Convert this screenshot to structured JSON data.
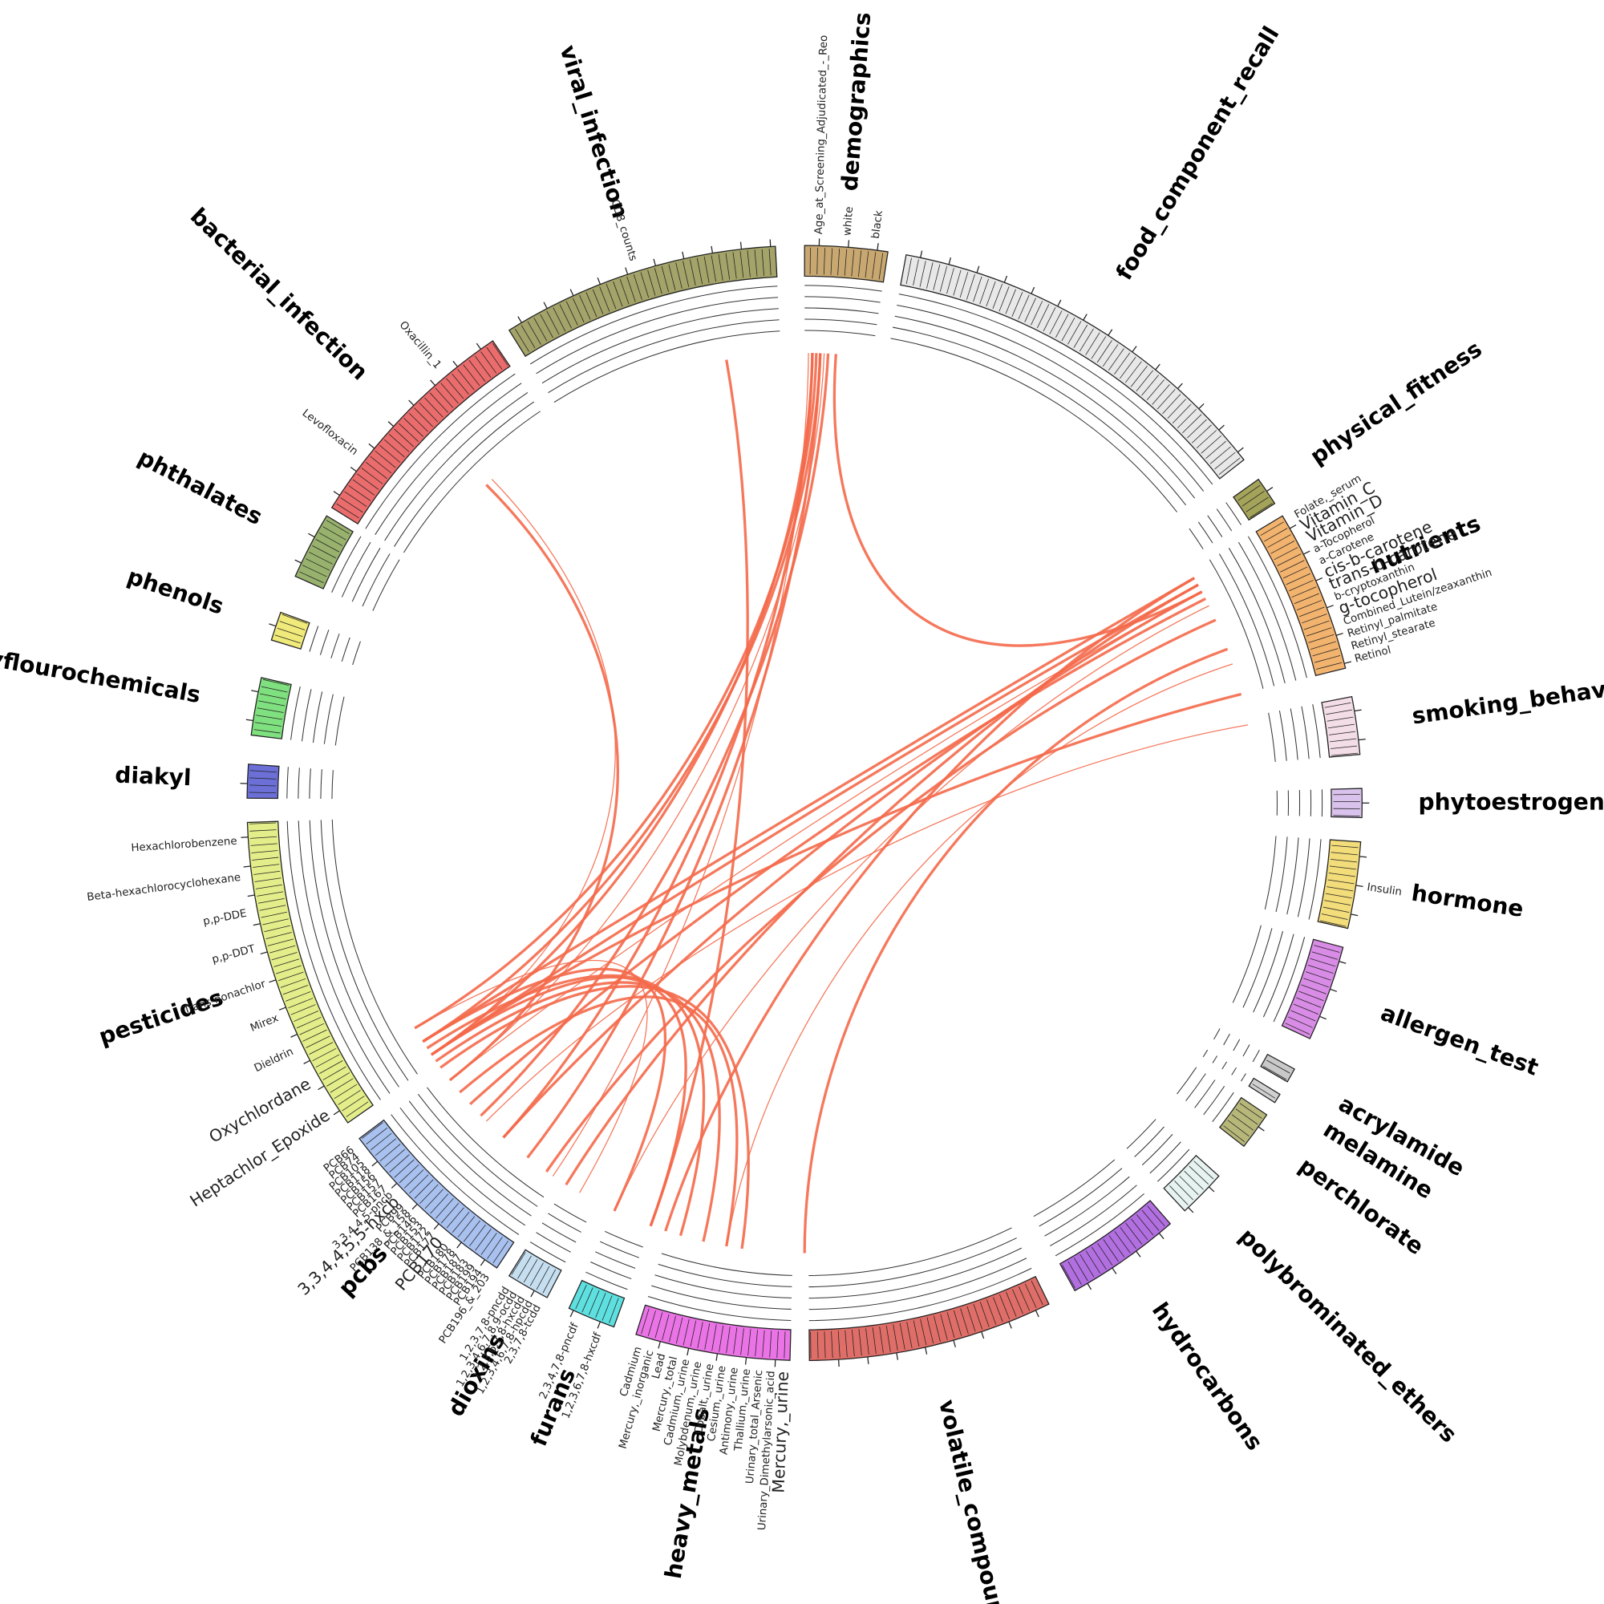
{
  "groups": [
    {
      "label": "demographics",
      "color": "#c8a870",
      "variables": [
        "Age_at_Screening_Adjudicated_-_Reo",
        "white",
        "black"
      ]
    },
    {
      "label": "food_component_recall",
      "color": "#e8e8e8",
      "variables": []
    },
    {
      "label": "physical_fitness",
      "color": "#a3a35a",
      "variables": []
    },
    {
      "label": "nutrients",
      "color": "#f2b36e",
      "variables": [
        "Folate,_serum",
        {
          "label": "Vitamin_C",
          "color": "#6baed6"
        },
        {
          "label": "Vitamin_D",
          "color": "#6baed6"
        },
        "a-Tocopherol",
        "a-Carotene",
        {
          "label": "cis-b-carotene",
          "color": "#6baed6"
        },
        {
          "label": "trans-b-carotene",
          "color": "#6baed6"
        },
        "b-cryptoxanthin",
        {
          "label": "g-tocopherol",
          "color": "#f4694a"
        },
        "Combined_Lutein/zeaxanthin",
        "Retinyl_palmitate",
        "Retinyl_stearate",
        "Retinol"
      ]
    },
    {
      "label": "smoking_behavior",
      "color": "#f3dde6",
      "variables": []
    },
    {
      "label": "phytoestrogens",
      "color": "#d9c2ec",
      "variables": []
    },
    {
      "label": "hormone",
      "color": "#f3dc7a",
      "variables": [
        "Insulin"
      ]
    },
    {
      "label": "allergen_test",
      "color": "#d98ce6",
      "variables": []
    },
    {
      "label": "acrylamide",
      "color": "#c9c9c9",
      "variables": []
    },
    {
      "label": "melamine",
      "color": "#d0d0d0",
      "variables": []
    },
    {
      "label": "perchlorate",
      "color": "#b7b77a",
      "variables": []
    },
    {
      "label": "polybrominated_ethers",
      "color": "#e6f3f0",
      "variables": []
    },
    {
      "label": "hydrocarbons",
      "color": "#b26fe0",
      "variables": []
    },
    {
      "label": "volatile_compounds",
      "color": "#df6e68",
      "variables": []
    },
    {
      "label": "heavy_metals",
      "color": "#ea74e6",
      "variables": [
        {
          "label": "Mercury,_urine",
          "color": "#6baed6"
        },
        "Urinary_Dimethylarsonic_acid",
        "Urinary_total_Arsenic",
        "Thallium,_urine",
        "Antimony,_urine",
        "Cesium,_urine",
        "Cobalt,_urine",
        "Molybdenum,_urine",
        "Cadmium,_urine",
        "Mercury,_total",
        "Lead",
        "Mercury,_inorganic",
        "Cadmium"
      ]
    },
    {
      "label": "furans",
      "color": "#5fe0e0",
      "variables": [
        "1,2,3,6,7,8-hxcdf",
        "2,3,4,7,8-pncdf"
      ]
    },
    {
      "label": "dioxins",
      "color": "#c6dff0",
      "variables": [
        "2,3,7,8-tcdd",
        "1,2,3,4,6,7,8-hpcdd",
        "1,2,3,6,7,8-hxcdd",
        "1,2,3,4,6,7,8,9-ocdd",
        "1,2,3,7,8-pncdd"
      ]
    },
    {
      "label": "pcbs",
      "color": "#a9c1ef",
      "variables": [
        "PCB196_&_203",
        "PCB194",
        "PCB199",
        "PCB183",
        "PCB187",
        "PCB178",
        "PCB180",
        {
          "label": "PCB170",
          "color": "#f4694a"
        },
        "PCB177",
        "PCB172",
        "PCB153",
        "PCB146",
        "PCB138_&_158",
        "PCB99",
        {
          "label": "3,3,4,4,5,5-hxcb",
          "color": "#f4694a"
        },
        "3,3,4,4,5-pncb",
        "PCB167",
        "PCB157",
        "PCB156",
        "PCB118",
        "PCB105",
        "PCB74",
        "PCB66"
      ]
    },
    {
      "label": "pesticides",
      "color": "#e3ee8a",
      "variables": [
        {
          "label": "Heptachlor_Epoxide",
          "color": "#f4694a"
        },
        {
          "label": "Oxychlordane",
          "color": "#f4694a"
        },
        "Dieldrin",
        "Mirex",
        "Trans-nonachlor",
        "p,p-DDT",
        "p,p-DDE",
        "Beta-hexachlorocyclohexane",
        "Hexachlorobenzene"
      ]
    },
    {
      "label": "diakyl",
      "color": "#6b6fd6",
      "variables": []
    },
    {
      "label": "polyflourochemicals",
      "color": "#7fe07f",
      "variables": []
    },
    {
      "label": "phenols",
      "color": "#f0ea7a",
      "variables": []
    },
    {
      "label": "phthalates",
      "color": "#98b26e",
      "variables": []
    },
    {
      "label": "bacterial_infection",
      "color": "#ea6c6c",
      "variables": [
        "Levofloxacin",
        "Oxacillin_1"
      ]
    },
    {
      "label": "viral_infection",
      "color": "#a3a36a",
      "variables": [
        "CD8_counts"
      ]
    }
  ],
  "link_color": "#f4694a"
}
